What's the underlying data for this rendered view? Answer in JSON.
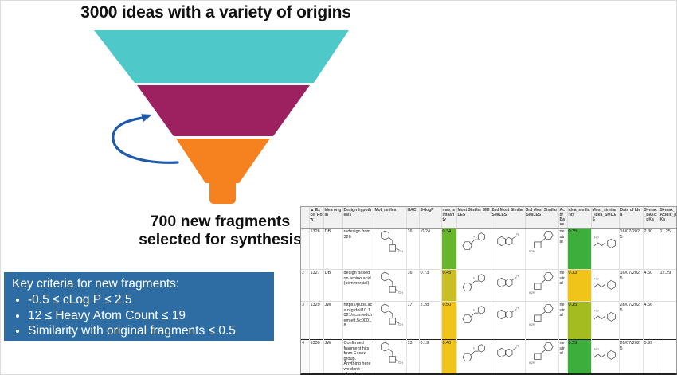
{
  "funnel": {
    "title": "3000 ideas with a variety of origins",
    "segments": [
      {
        "name": "top",
        "color": "#4EC8C9"
      },
      {
        "name": "middle",
        "color": "#9D2161"
      },
      {
        "name": "bottom",
        "color": "#F5821F"
      }
    ],
    "arrow_color": "#1E5AA8",
    "caption_line1": "700 new fragments",
    "caption_line2": "selected for synthesis"
  },
  "criteria_box": {
    "bg_color": "#2E6DA4",
    "text_color": "#FFFFFF",
    "title": "Key criteria for new fragments:",
    "bullets": [
      "-0.5 ≤ cLog P ≤ 2.5",
      "12 ≤ Heavy Atom Count ≤ 19",
      "Similarity with original fragments ≤ 0.5"
    ]
  },
  "table": {
    "columns": [
      {
        "key": "idx",
        "label": ""
      },
      {
        "key": "excel_row",
        "label": "▲ Excel Row"
      },
      {
        "key": "idea_origin",
        "label": "Idea origin"
      },
      {
        "key": "design",
        "label": "Design hypothesis"
      },
      {
        "key": "mol_smiles",
        "label": "Mol_smiles",
        "type": "mol"
      },
      {
        "key": "hac",
        "label": "HAC"
      },
      {
        "key": "slogp",
        "label": "S+logP"
      },
      {
        "key": "max_sim",
        "label": "max_similarity",
        "type": "highlight"
      },
      {
        "key": "sim1",
        "label": "Most Similar SMILES",
        "type": "mol"
      },
      {
        "key": "sim2",
        "label": "2nd Most Similar SMILES",
        "type": "mol"
      },
      {
        "key": "sim3",
        "label": "3rd Most Similar SMILES",
        "type": "mol"
      },
      {
        "key": "acid_base",
        "label": "Acid/Base"
      },
      {
        "key": "idea_sim",
        "label": "idea_similarity",
        "type": "highlight"
      },
      {
        "key": "idea_mol",
        "label": "Most_similar_idea_SMILES",
        "type": "mol"
      },
      {
        "key": "date",
        "label": "Date of Idea"
      },
      {
        "key": "pk_basic",
        "label": "S+max_Basic_pKa"
      },
      {
        "key": "pk_acidic",
        "label": "S+max_Acidic_pKa"
      }
    ],
    "rows": [
      {
        "idx": "1",
        "excel_row": "1326",
        "idea_origin": "DB",
        "design": "redesign from 326",
        "mol_smiles": "molecule",
        "hac": "16",
        "slogp": "-0.24",
        "max_sim": {
          "value": "0.34",
          "color": "#66B52B"
        },
        "sim1": "molecule",
        "sim2": "molecule",
        "sim3": "molecule",
        "acid_base": "neutral",
        "idea_sim": {
          "value": "0.25",
          "color": "#3DAE3C"
        },
        "idea_mol": "molecule",
        "date": "16/07/2025",
        "pk_basic": "2.30",
        "pk_acidic": "11.25"
      },
      {
        "idx": "2",
        "excel_row": "1327",
        "idea_origin": "DB",
        "design": "design based on amino acid (commercial)",
        "mol_smiles": "molecule",
        "hac": "16",
        "slogp": "0.73",
        "max_sim": {
          "value": "0.45",
          "color": "#C9BE23"
        },
        "sim1": "molecule",
        "sim2": "molecule",
        "sim3": "molecule",
        "acid_base": "neutral",
        "idea_sim": {
          "value": "0.33",
          "color": "#F0C419"
        },
        "idea_mol": "molecule",
        "date": "16/07/2025",
        "pk_basic": "4.60",
        "pk_acidic": "12.29"
      },
      {
        "idx": "3",
        "excel_row": "1329",
        "idea_origin": "JW",
        "design": "https://pubs.acs.org/doi/10.1021/acsmedchemlett.5c00018",
        "mol_smiles": "molecule",
        "hac": "17",
        "slogp": "2.28",
        "max_sim": {
          "value": "0.50",
          "color": "#F0C419"
        },
        "sim1": "molecule",
        "sim2": "molecule",
        "sim3": "molecule",
        "acid_base": "neutral",
        "idea_sim": {
          "value": "0.35",
          "color": "#A4BC1F"
        },
        "idea_mol": "molecule",
        "date": "28/07/2025",
        "pk_basic": "4.66",
        "pk_acidic": ""
      },
      {
        "idx": "4",
        "excel_row": "1330",
        "idea_origin": "JW",
        "design": "Confirmed fragment hits from Essex group. Anything here we don't already cover?",
        "mol_smiles": "molecule",
        "hac": "13",
        "slogp": "0.19",
        "max_sim": {
          "value": "0.40",
          "color": "#F0C419"
        },
        "sim1": "molecule",
        "sim2": "molecule",
        "sim3": "molecule",
        "acid_base": "neutral",
        "idea_sim": {
          "value": "0.29",
          "color": "#3DAE3C"
        },
        "idea_mol": "molecule",
        "date": "26/07/2025",
        "pk_basic": "5.99",
        "pk_acidic": ""
      }
    ]
  }
}
